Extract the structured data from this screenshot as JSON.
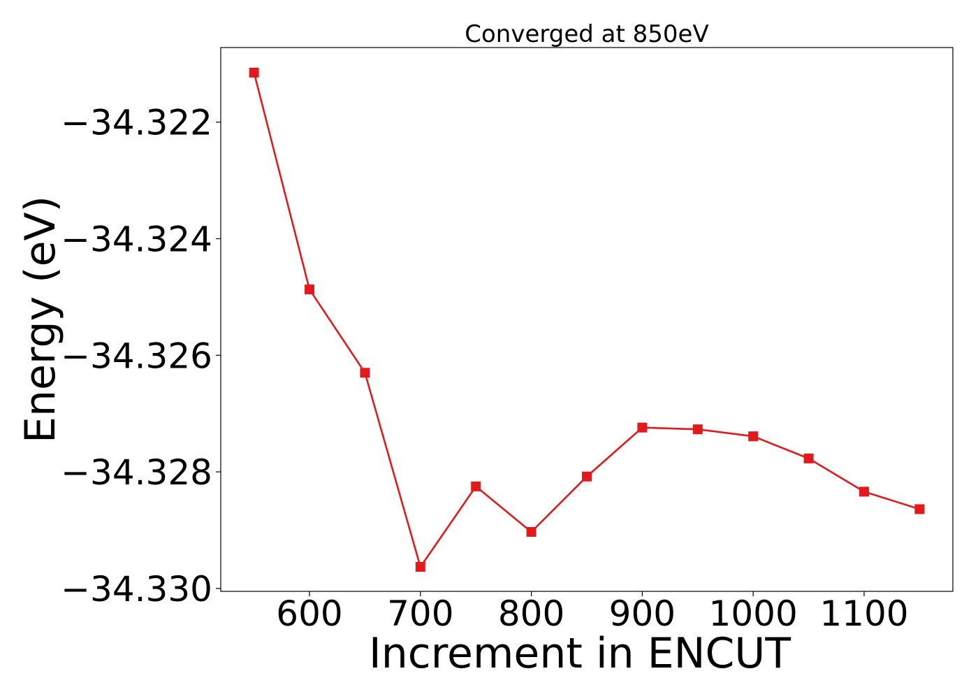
{
  "chart_data": {
    "type": "line",
    "title": "Converged at 850eV",
    "xlabel": "Increment in ENCUT",
    "ylabel": "Energy (eV)",
    "x": [
      550,
      600,
      650,
      700,
      750,
      800,
      850,
      900,
      950,
      1000,
      1050,
      1100,
      1150
    ],
    "series": [
      {
        "values": [
          -34.32115,
          -34.32487,
          -34.3263,
          -34.32963,
          -34.32825,
          -34.32903,
          -34.32808,
          -34.32724,
          -34.32727,
          -34.32739,
          -34.32777,
          -34.32834,
          -34.32864
        ],
        "color": "#e31a1c",
        "marker": "square"
      }
    ],
    "xlim": [
      520,
      1180
    ],
    "ylim": [
      -34.33005,
      -34.32072
    ],
    "xticks": [
      600,
      700,
      800,
      900,
      1000,
      1100
    ],
    "xtick_labels": [
      "600",
      "700",
      "800",
      "900",
      "1000",
      "1100"
    ],
    "yticks": [
      -34.33,
      -34.328,
      -34.326,
      -34.324,
      -34.322
    ],
    "ytick_labels": [
      "−34.330",
      "−34.328",
      "−34.326",
      "−34.324",
      "−34.322"
    ],
    "grid": false,
    "legend": false
  }
}
